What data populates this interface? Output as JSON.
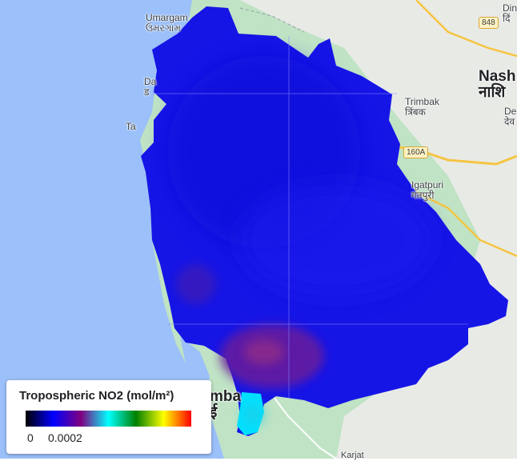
{
  "map": {
    "place_labels": {
      "umargam": "Umargam",
      "umargam_local": "ઉમરગામ",
      "dahanu": "Da",
      "dahanu_local": "ड",
      "tarapur": "Ta",
      "nashik": "Nash",
      "nashik_local": "नाशि",
      "dindori": "Din",
      "dindori_local": "दिं",
      "deola": "De",
      "deola_local": "देव",
      "trimbak": "Trimbak",
      "trimbak_local": "त्रिंबक",
      "igatpuri": "Igatpuri",
      "igatpuri_local": "गतपुरी",
      "mumbai": "mba",
      "mumbai_local": "ई",
      "karjat": "Karjat"
    },
    "road_shields": {
      "r848": "848",
      "r160a": "160A"
    },
    "colors": {
      "sea": "#9cc0f9",
      "land": "#bfe3c4",
      "no2_low": "#0000ff",
      "no2_mid": "#800080",
      "no2_high": "#00ffff"
    }
  },
  "legend": {
    "title": "Tropospheric NO2 (mol/m²)",
    "min": "0",
    "max": "0.0002",
    "palette": [
      "#000000",
      "#0000ff",
      "#800080",
      "#00ffff",
      "#008000",
      "#ffff00",
      "#ff0000"
    ]
  }
}
